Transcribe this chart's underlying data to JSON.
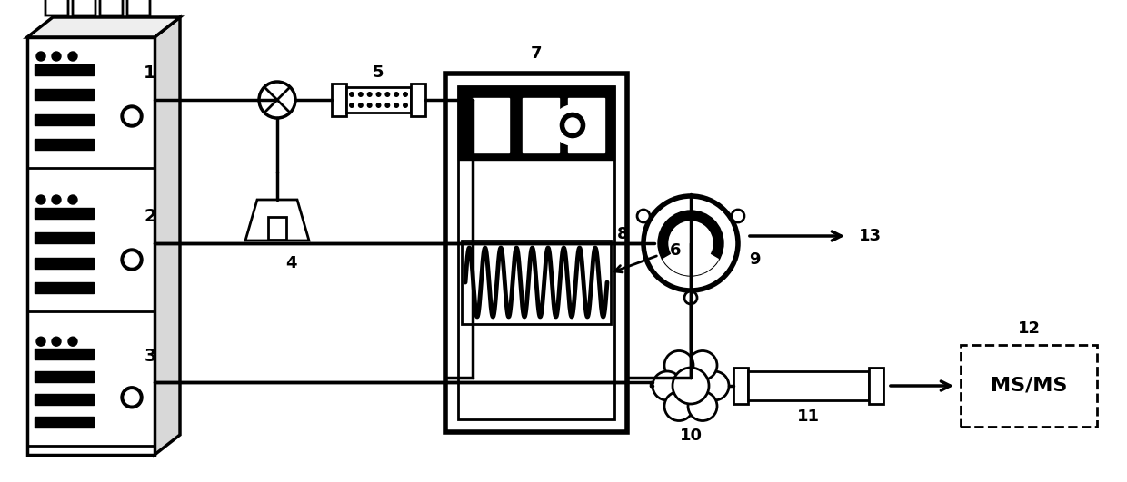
{
  "bg_color": "#ffffff",
  "line_color": "#000000",
  "fig_width": 12.4,
  "fig_height": 5.31,
  "dpi": 100
}
